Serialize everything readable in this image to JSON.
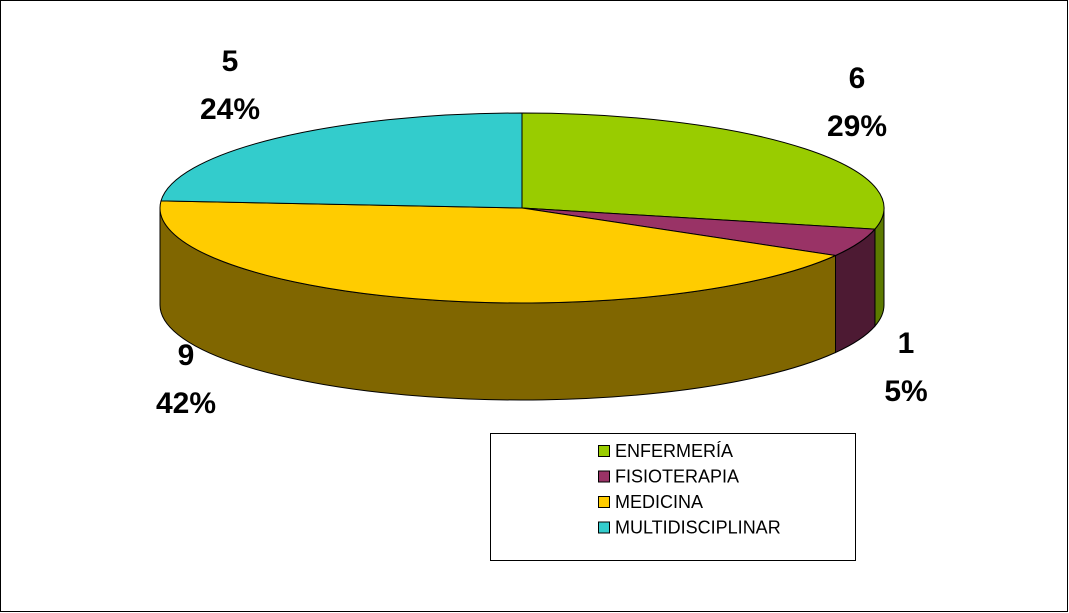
{
  "chart_data": {
    "type": "pie3d",
    "categories": [
      "ENFERMERÍA",
      "FISIOTERAPIA",
      "MEDICINA",
      "MULTIDISCIPLINAR"
    ],
    "values": [
      6,
      1,
      9,
      5
    ],
    "percentages": [
      29,
      5,
      42,
      24
    ],
    "percentage_labels": [
      "29%",
      "5%",
      "42%",
      "24%"
    ],
    "colors": [
      "#99cc00",
      "#993366",
      "#ffcc00",
      "#33cccc"
    ],
    "side_colors": [
      "#5c7a00",
      "#4d1a33",
      "#806600",
      "#1a6666"
    ],
    "legend": "bottom-right"
  }
}
